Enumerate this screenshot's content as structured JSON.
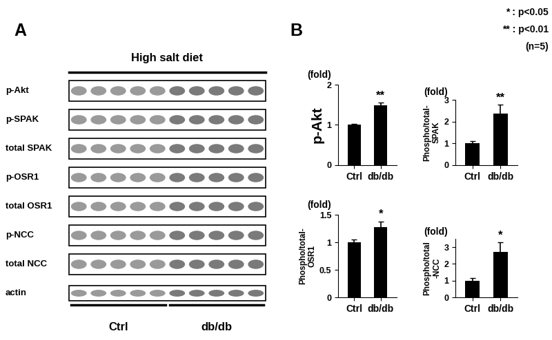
{
  "panel_labels": [
    "A",
    "B"
  ],
  "notes": [
    "* : p<0.05",
    "** : p<0.01",
    "(n=5)"
  ],
  "blot": {
    "title": "High salt diet",
    "rows": [
      "p-Akt",
      "p-SPAK",
      "total SPAK",
      "p-OSR1",
      "total OSR1",
      "p-NCC",
      "total NCC",
      "actin"
    ],
    "groups": [
      {
        "name": "Ctrl",
        "lanes": 5
      },
      {
        "name": "db/db",
        "lanes": 5
      }
    ]
  },
  "chart_data": [
    {
      "type": "bar",
      "subtitle": "(fold)",
      "ylabel": "p-Akt",
      "categories": [
        "Ctrl",
        "db/db"
      ],
      "values": [
        1.0,
        1.48
      ],
      "errors": [
        0.03,
        0.08
      ],
      "color": "#000000",
      "ylim": [
        0,
        2
      ],
      "yticks": [
        0,
        1,
        2
      ],
      "annotations": [
        {
          "category": "db/db",
          "text": "**"
        }
      ]
    },
    {
      "type": "bar",
      "subtitle": "(fold)",
      "ylabel": "Phospho/total-\nSPAK",
      "categories": [
        "Ctrl",
        "db/db"
      ],
      "values": [
        1.0,
        2.38
      ],
      "errors": [
        0.12,
        0.4
      ],
      "color": "#000000",
      "ylim": [
        0,
        3
      ],
      "yticks": [
        0,
        1,
        2,
        3
      ],
      "annotations": [
        {
          "category": "db/db",
          "text": "**"
        }
      ]
    },
    {
      "type": "bar",
      "subtitle": "(fold)",
      "ylabel": "Phospho/total-\nOSR1",
      "categories": [
        "Ctrl",
        "db/db"
      ],
      "values": [
        1.0,
        1.27
      ],
      "errors": [
        0.05,
        0.11
      ],
      "color": "#000000",
      "ylim": [
        0,
        1.5
      ],
      "yticks": [
        0,
        0.5,
        1,
        1.5
      ],
      "annotations": [
        {
          "category": "db/db",
          "text": "*"
        }
      ]
    },
    {
      "type": "bar",
      "subtitle": "(fold)",
      "ylabel": "Phospho/total\n-NCC",
      "categories": [
        "Ctrl",
        "db/db"
      ],
      "values": [
        1.0,
        2.7
      ],
      "errors": [
        0.15,
        0.6
      ],
      "color": "#000000",
      "ylim": [
        0,
        3.5
      ],
      "yticks": [
        0,
        1,
        2,
        3
      ],
      "annotations": [
        {
          "category": "db/db",
          "text": "*"
        }
      ]
    }
  ]
}
